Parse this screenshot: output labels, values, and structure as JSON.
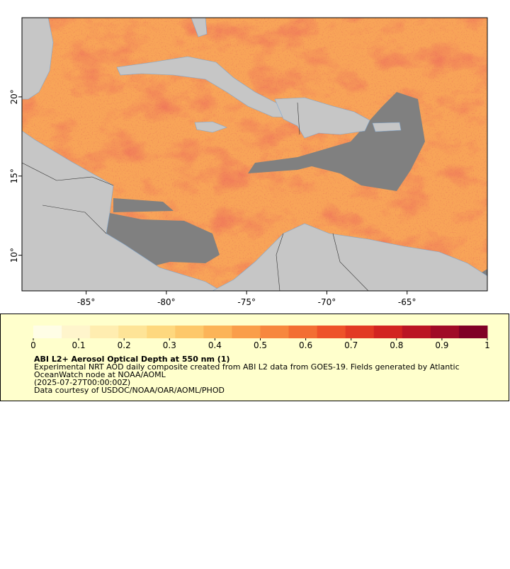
{
  "map": {
    "lon_range": [
      -89,
      -60
    ],
    "lat_range": [
      7.75,
      25
    ],
    "lon_ticks": [
      {
        "value": -85,
        "label": "-85°"
      },
      {
        "value": -80,
        "label": "-80°"
      },
      {
        "value": -75,
        "label": "-75°"
      },
      {
        "value": -70,
        "label": "-70°"
      },
      {
        "value": -65,
        "label": "-65°"
      }
    ],
    "lat_ticks": [
      {
        "value": 10,
        "label": "10°"
      },
      {
        "value": 15,
        "label": "15°"
      },
      {
        "value": 20,
        "label": "20°"
      }
    ]
  },
  "legend": {
    "colorbar": {
      "range": [
        0,
        1
      ],
      "ticks": [
        0,
        0.1,
        0.2,
        0.3,
        0.4,
        0.5,
        0.6,
        0.7,
        0.8,
        0.9,
        1
      ],
      "colors": [
        "#fffde6",
        "#fff5cc",
        "#ffedb0",
        "#fee497",
        "#fed87e",
        "#fdc86a",
        "#fcb458",
        "#fa9e4a",
        "#f7873e",
        "#f36e33",
        "#ee5229",
        "#e23a24",
        "#d22421",
        "#bb1524",
        "#a00b27",
        "#800026"
      ]
    },
    "title": "ABI L2+ Aerosol Optical Depth at 550 nm (1)",
    "lines": [
      "Experimental NRT AOD daily composite created from ABI L2 data from GOES-19. Fields generated by Atlantic",
      "OceanWatch node at NOAA/AOML",
      "(2025-07-27T00:00:00Z)",
      "Data courtesy of USDOC/NOAA/OAR/AOML/PHOD"
    ]
  }
}
